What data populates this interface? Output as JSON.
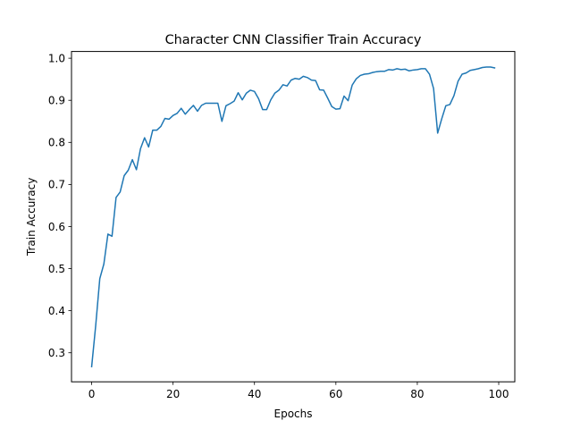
{
  "chart_data": {
    "type": "line",
    "title": "Character CNN Classifier Train Accuracy",
    "xlabel": "Epochs",
    "ylabel": "Train Accuracy",
    "xlim": [
      -4.95,
      103.95
    ],
    "ylim": [
      0.231,
      1.016
    ],
    "xticks": [
      0,
      20,
      40,
      60,
      80,
      100
    ],
    "yticks": [
      0.3,
      0.4,
      0.5,
      0.6,
      0.7,
      0.8,
      0.9,
      1.0
    ],
    "xtick_labels": [
      "0",
      "20",
      "40",
      "60",
      "80",
      "100"
    ],
    "ytick_labels": [
      "0.3",
      "0.4",
      "0.5",
      "0.6",
      "0.7",
      "0.8",
      "0.9",
      "1.0"
    ],
    "grid": false,
    "legend": null,
    "line_color": "#1f77b4",
    "series": [
      {
        "values": [
          0.267,
          0.365,
          0.476,
          0.511,
          0.582,
          0.577,
          0.669,
          0.682,
          0.721,
          0.734,
          0.759,
          0.735,
          0.785,
          0.811,
          0.789,
          0.829,
          0.829,
          0.838,
          0.857,
          0.855,
          0.864,
          0.869,
          0.881,
          0.867,
          0.878,
          0.888,
          0.874,
          0.888,
          0.893,
          0.893,
          0.893,
          0.893,
          0.85,
          0.887,
          0.892,
          0.898,
          0.918,
          0.901,
          0.917,
          0.924,
          0.921,
          0.904,
          0.878,
          0.878,
          0.901,
          0.917,
          0.924,
          0.937,
          0.934,
          0.948,
          0.952,
          0.95,
          0.957,
          0.954,
          0.948,
          0.947,
          0.925,
          0.924,
          0.905,
          0.885,
          0.879,
          0.88,
          0.91,
          0.899,
          0.936,
          0.951,
          0.959,
          0.962,
          0.963,
          0.966,
          0.968,
          0.969,
          0.969,
          0.973,
          0.972,
          0.975,
          0.973,
          0.974,
          0.97,
          0.972,
          0.973,
          0.975,
          0.975,
          0.962,
          0.928,
          0.822,
          0.856,
          0.887,
          0.89,
          0.911,
          0.945,
          0.962,
          0.965,
          0.971,
          0.973,
          0.975,
          0.978,
          0.979,
          0.979,
          0.977
        ]
      }
    ]
  }
}
